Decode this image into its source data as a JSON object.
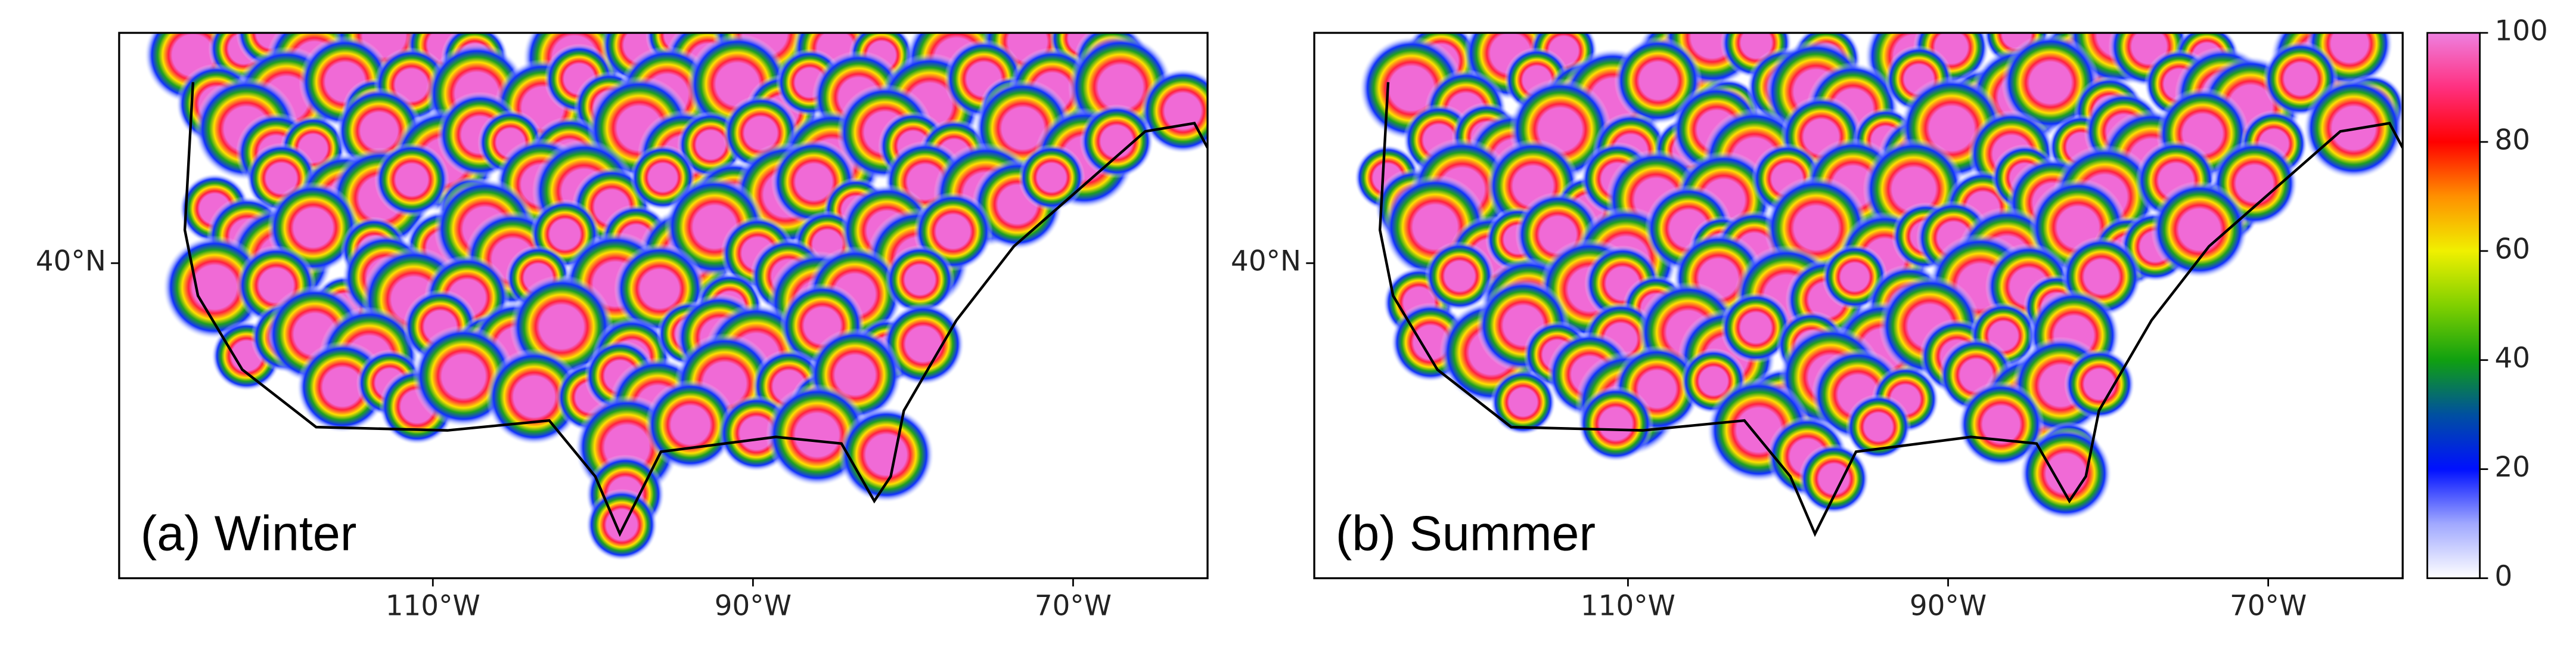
{
  "panels": [
    {
      "label": "(a) Winter"
    },
    {
      "label": "(b) Summer"
    }
  ],
  "map": {
    "xlim": [
      -129.6,
      -61.6
    ],
    "ylim": [
      20.3,
      54.4
    ],
    "xticks": [
      {
        "value": -110,
        "label": "110°W"
      },
      {
        "value": -90,
        "label": "90°W"
      },
      {
        "value": -70,
        "label": "70°W"
      }
    ],
    "yticks": [
      {
        "value": 40,
        "label": "40°N"
      }
    ]
  },
  "colorbar": {
    "lim": [
      0,
      100
    ],
    "ticks": [
      0,
      20,
      40,
      60,
      80,
      100
    ]
  }
}
